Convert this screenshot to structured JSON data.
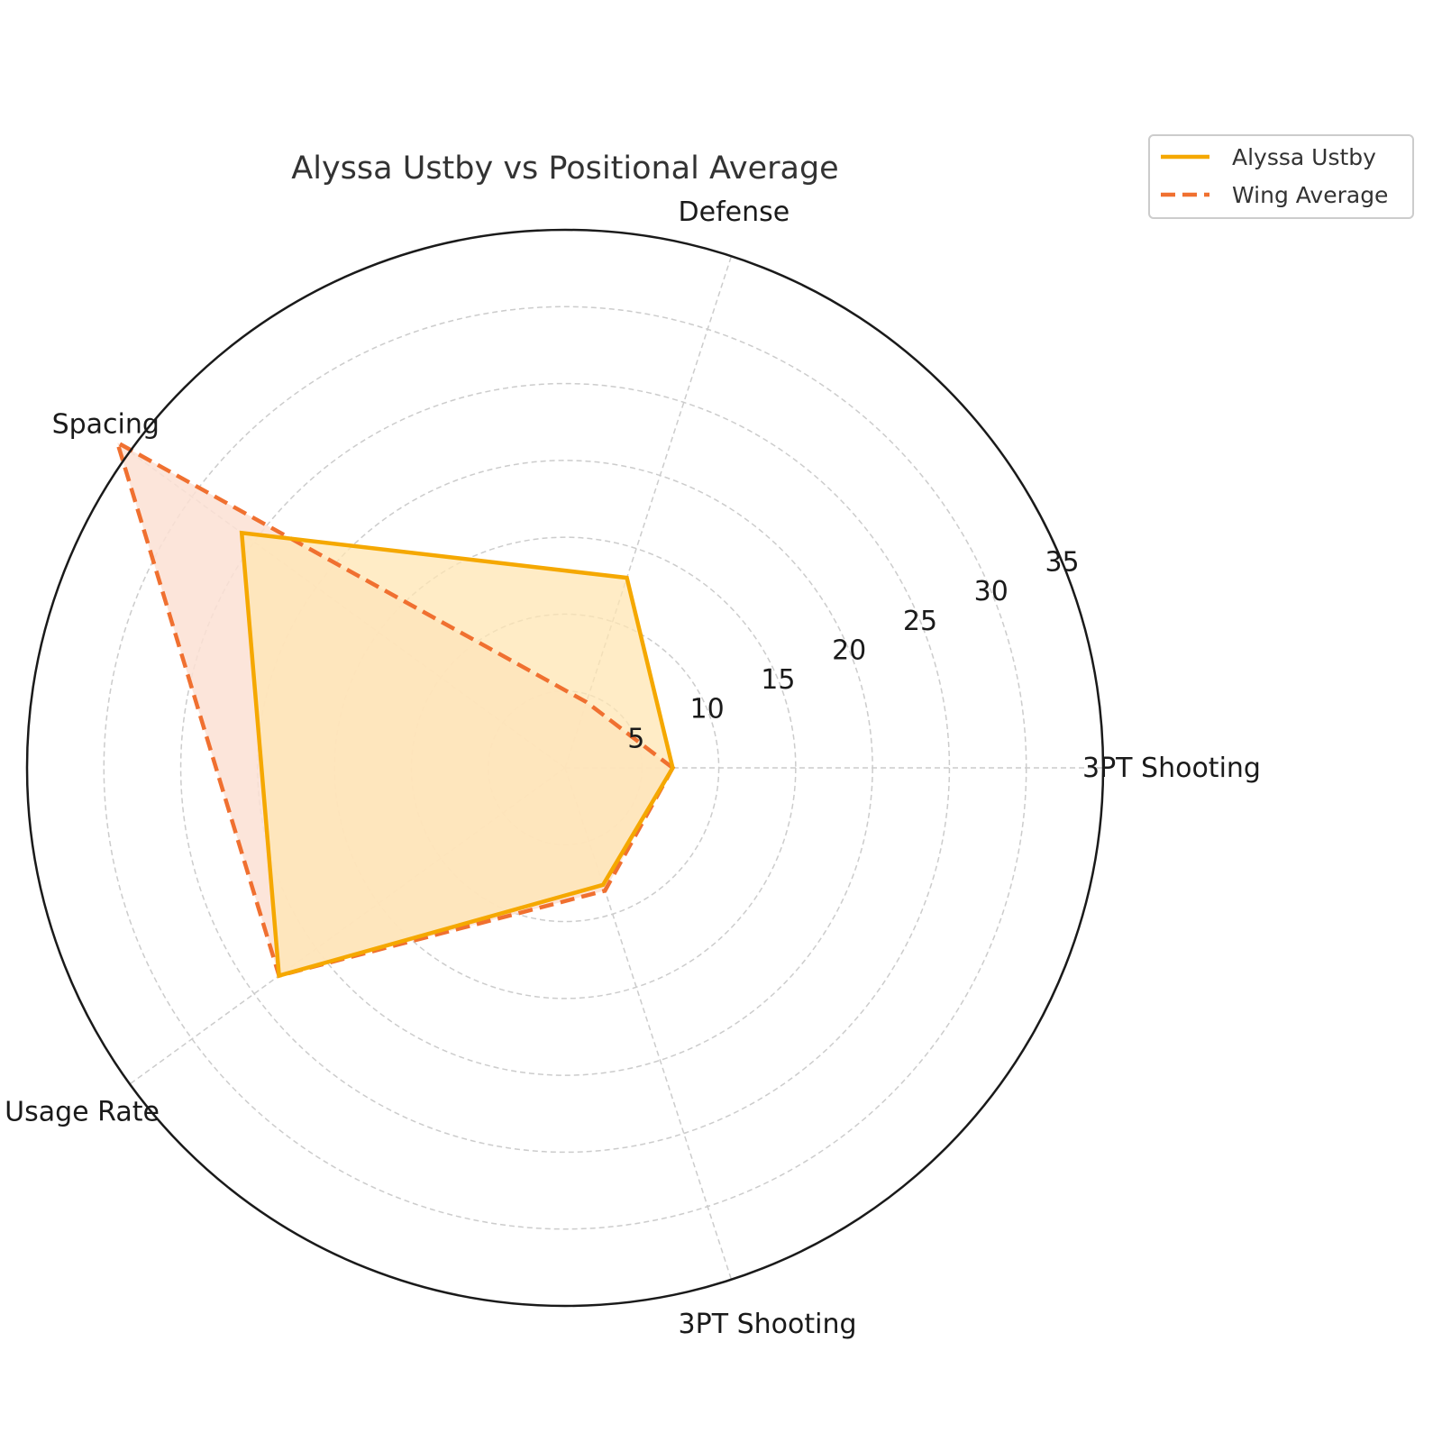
{
  "chart_data": {
    "type": "radar",
    "title": "Alyssa Ustby vs Positional Average",
    "categories": [
      "3PT Shooting",
      "Defense",
      "Spacing",
      "Usage Rate",
      "3PT Shooting"
    ],
    "series": [
      {
        "name": "Alyssa Ustby",
        "values": [
          7,
          13,
          26,
          23,
          8
        ],
        "color": "#f5a800",
        "fill": "#ffe6b3",
        "style": "solid"
      },
      {
        "name": "Wing Average",
        "values": [
          7,
          4.5,
          36,
          23,
          8.4
        ],
        "color": "#f07030",
        "fill": "#fbe0d4",
        "style": "dashed"
      }
    ],
    "rlim": [
      0,
      35
    ],
    "rticks": [
      5,
      10,
      15,
      20,
      25,
      30,
      35
    ],
    "grid": true,
    "legend_position": "top-right"
  }
}
